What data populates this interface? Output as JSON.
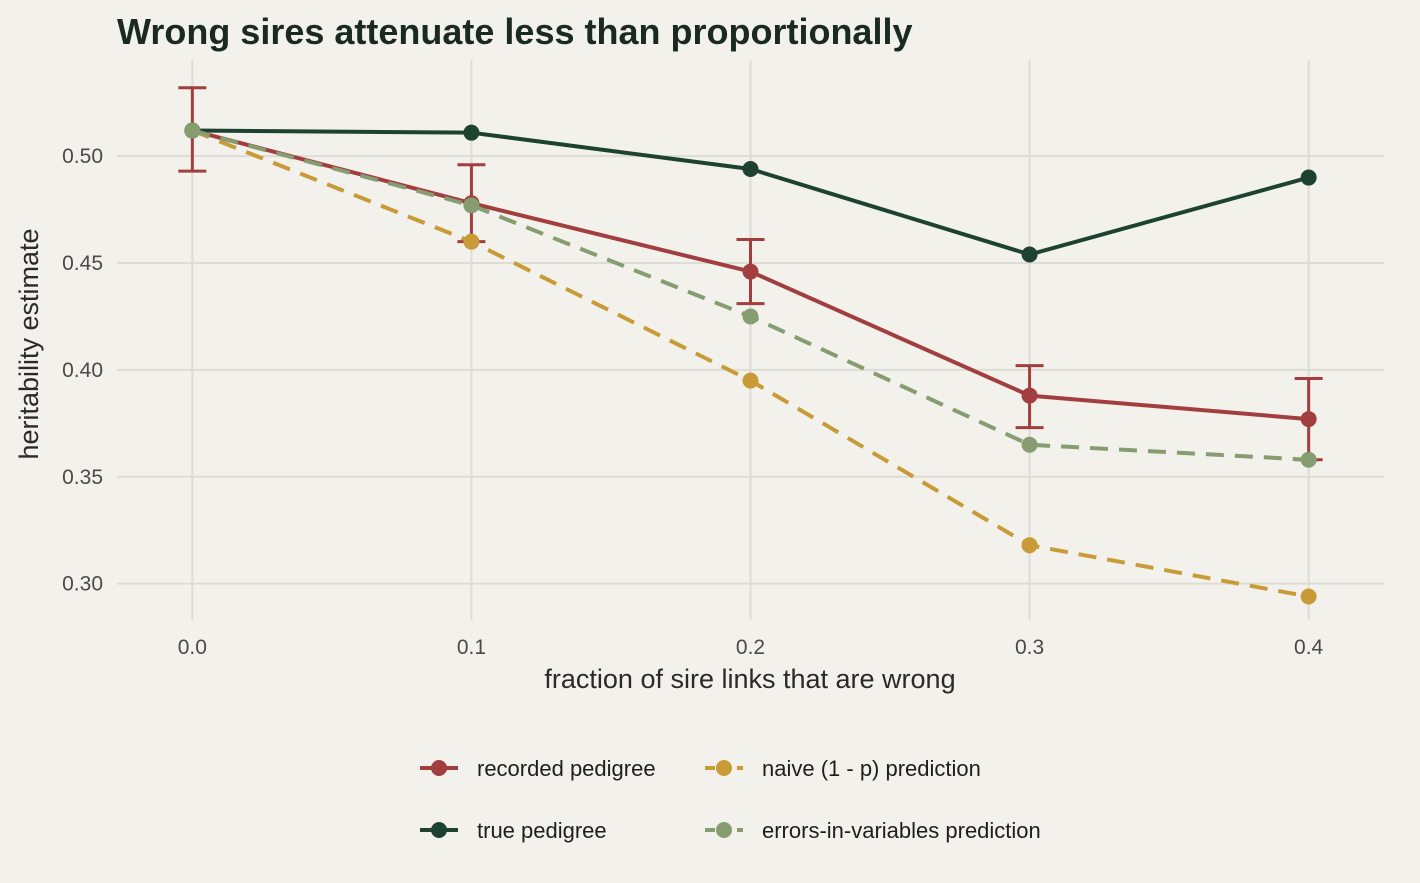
{
  "chart_data": {
    "type": "line",
    "title": "Wrong sires attenuate less than proportionally",
    "xlabel": "fraction of sire links that are wrong",
    "ylabel": "heritability estimate",
    "x": [
      0.0,
      0.1,
      0.2,
      0.3,
      0.4
    ],
    "x_tick_labels": [
      "0.0",
      "0.1",
      "0.2",
      "0.3",
      "0.4"
    ],
    "y_ticks": [
      0.3,
      0.35,
      0.4,
      0.45,
      0.5
    ],
    "y_tick_labels": [
      "0.30",
      "0.35",
      "0.40",
      "0.45",
      "0.50"
    ],
    "xlim": [
      -0.027,
      0.427
    ],
    "ylim": [
      0.283,
      0.545
    ],
    "grid": true,
    "legend_position": "bottom",
    "series": [
      {
        "name": "recorded pedigree",
        "color": "#a23e3e",
        "dashed": false,
        "values": [
          0.512,
          0.478,
          0.446,
          0.388,
          0.377
        ],
        "error_low": [
          0.493,
          0.46,
          0.431,
          0.373,
          0.358
        ],
        "error_high": [
          0.532,
          0.496,
          0.461,
          0.402,
          0.396
        ]
      },
      {
        "name": "true pedigree",
        "color": "#1e4230",
        "dashed": false,
        "values": [
          0.512,
          0.511,
          0.494,
          0.454,
          0.49
        ]
      },
      {
        "name": "naive (1 - p) prediction",
        "color": "#c99a38",
        "dashed": true,
        "values": [
          0.512,
          0.46,
          0.395,
          0.318,
          0.294
        ]
      },
      {
        "name": "errors-in-variables prediction",
        "color": "#869c71",
        "dashed": true,
        "values": [
          0.512,
          0.477,
          0.425,
          0.365,
          0.358
        ]
      }
    ]
  }
}
